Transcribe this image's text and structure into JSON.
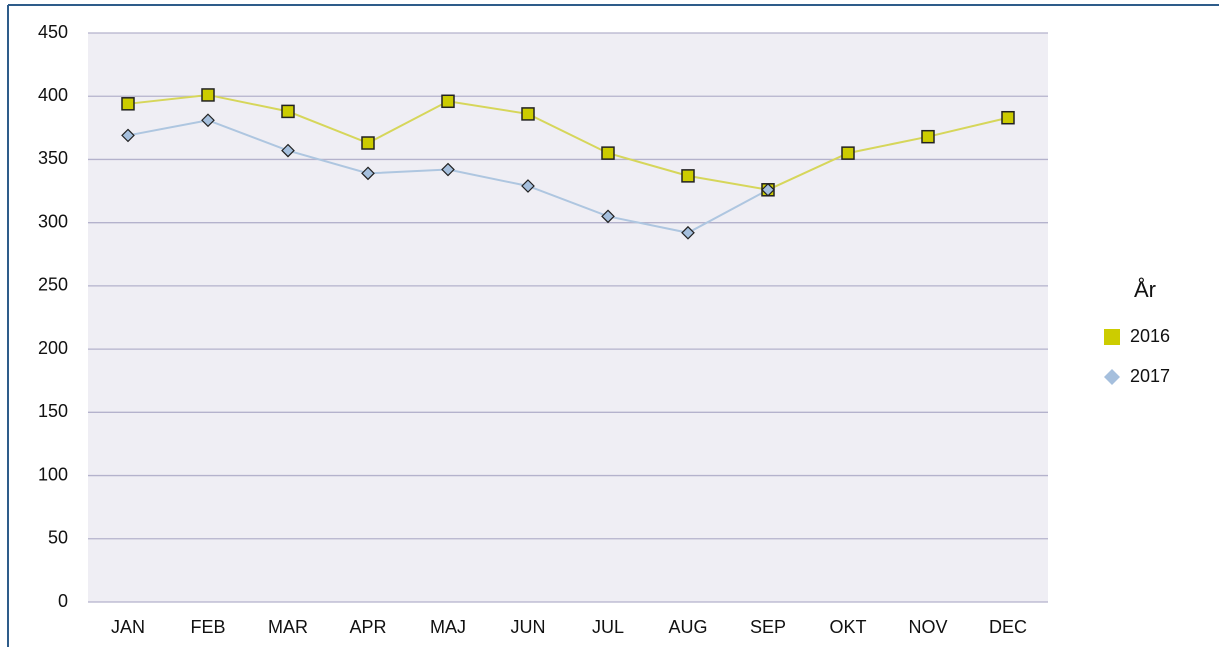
{
  "chart_data": {
    "type": "line",
    "categories": [
      "JAN",
      "FEB",
      "MAR",
      "APR",
      "MAJ",
      "JUN",
      "JUL",
      "AUG",
      "SEP",
      "OKT",
      "NOV",
      "DEC"
    ],
    "series": [
      {
        "name": "2016",
        "color": "#cccc00",
        "line_color": "#d6d65a",
        "marker": "square",
        "values": [
          394,
          401,
          388,
          363,
          396,
          386,
          355,
          337,
          326,
          355,
          368,
          383
        ]
      },
      {
        "name": "2017",
        "color": "#a5bfdd",
        "line_color": "#aec6e0",
        "marker": "diamond",
        "values": [
          369,
          381,
          357,
          339,
          342,
          329,
          305,
          292,
          326,
          null,
          null,
          null
        ]
      }
    ],
    "legend_title": "År",
    "legend": "right",
    "ylim": [
      0,
      450
    ],
    "yticks": [
      0,
      50,
      100,
      150,
      200,
      250,
      300,
      350,
      400,
      450
    ],
    "grid": true
  }
}
